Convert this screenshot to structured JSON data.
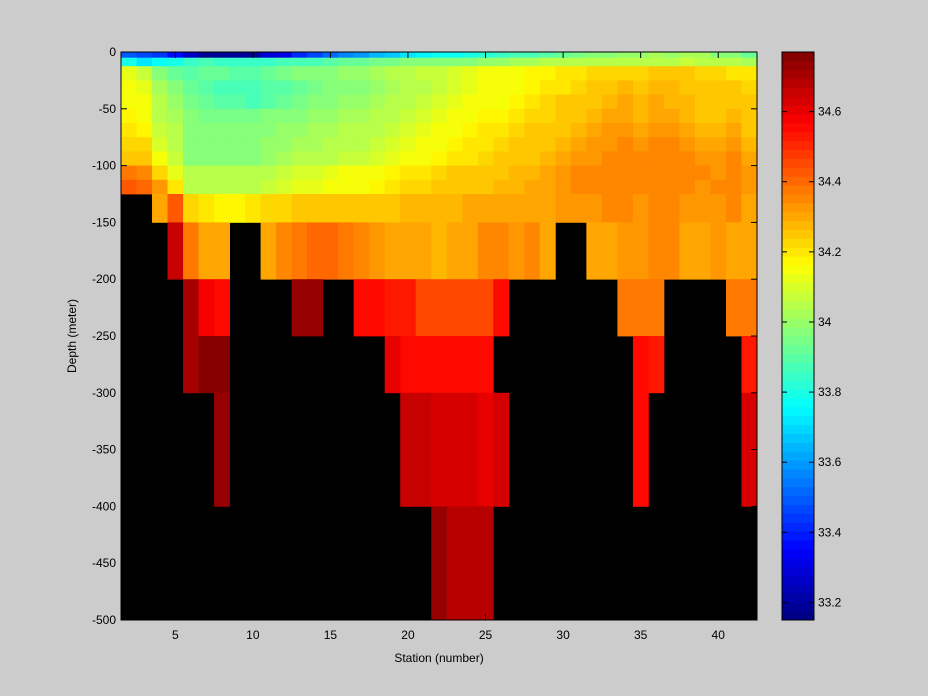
{
  "chart_data": {
    "type": "heatmap",
    "title": "",
    "xlabel": "Station (number)",
    "ylabel": "Depth (meter)",
    "xlim": [
      1.5,
      42.5
    ],
    "ylim": [
      -500,
      0
    ],
    "xticks": [
      5,
      10,
      15,
      20,
      25,
      30,
      35,
      40
    ],
    "yticks": [
      0,
      -50,
      -100,
      -150,
      -200,
      -250,
      -300,
      -350,
      -400,
      -450,
      -500
    ],
    "colorbar": {
      "colormap": "jet",
      "clim": [
        33.15,
        34.77
      ],
      "ticks": [
        33.2,
        33.4,
        33.6,
        33.8,
        34,
        34.2,
        34.4,
        34.6
      ],
      "tick_labels": [
        "33.2",
        "33.4",
        "33.6",
        "33.8",
        "34",
        "34.2",
        "34.4",
        "34.6"
      ],
      "levels": 64
    },
    "background_color": "#000000",
    "figure_color": "#cccccc",
    "stations": [
      2,
      3,
      4,
      5,
      6,
      7,
      8,
      9,
      10,
      11,
      12,
      13,
      14,
      15,
      16,
      17,
      18,
      19,
      20,
      21,
      22,
      23,
      24,
      25,
      26,
      27,
      28,
      29,
      30,
      31,
      32,
      33,
      34,
      35,
      36,
      37,
      38,
      39,
      40,
      41,
      42
    ],
    "depth_bins": [
      [
        -5,
        0
      ],
      [
        -12.5,
        -5
      ],
      [
        -25,
        -12.5
      ],
      [
        -37.5,
        -25
      ],
      [
        -50,
        -37.5
      ],
      [
        -62.5,
        -50
      ],
      [
        -75,
        -62.5
      ],
      [
        -87.5,
        -75
      ],
      [
        -100,
        -87.5
      ],
      [
        -112.5,
        -100
      ],
      [
        -125,
        -112.5
      ],
      [
        -150,
        -125
      ],
      [
        -200,
        -150
      ],
      [
        -250,
        -200
      ],
      [
        -300,
        -250
      ],
      [
        -400,
        -300
      ],
      [
        -500,
        -400
      ]
    ],
    "salinity_rows": [
      [
        33.48,
        33.46,
        33.44,
        33.36,
        33.26,
        33.2,
        33.18,
        33.18,
        33.18,
        33.28,
        33.32,
        33.42,
        33.46,
        33.52,
        33.56,
        33.6,
        33.64,
        33.68,
        33.72,
        33.74,
        33.76,
        33.78,
        33.8,
        33.82,
        33.84,
        33.86,
        33.88,
        33.9,
        33.92,
        33.94,
        33.96,
        33.98,
        34.0,
        34.0,
        34.02,
        34.0,
        34.02,
        34.02,
        33.98,
        33.96,
        33.92
      ],
      [
        33.8,
        33.72,
        33.76,
        33.8,
        33.84,
        33.86,
        33.84,
        33.84,
        33.84,
        33.84,
        33.86,
        33.86,
        33.88,
        33.9,
        33.92,
        33.92,
        33.94,
        33.94,
        33.96,
        33.96,
        33.98,
        33.98,
        33.98,
        34.0,
        34.0,
        34.02,
        34.02,
        34.04,
        34.04,
        34.04,
        34.06,
        34.06,
        34.06,
        34.04,
        34.06,
        34.06,
        34.08,
        34.06,
        34.06,
        34.04,
        34.02
      ],
      [
        34.12,
        34.08,
        33.96,
        33.92,
        33.9,
        33.92,
        33.92,
        33.9,
        33.9,
        33.92,
        33.94,
        33.96,
        33.96,
        33.98,
        34.0,
        34.0,
        34.02,
        34.04,
        34.06,
        34.08,
        34.08,
        34.1,
        34.12,
        34.14,
        34.16,
        34.16,
        34.18,
        34.18,
        34.2,
        34.2,
        34.22,
        34.22,
        34.22,
        34.22,
        34.24,
        34.24,
        34.24,
        34.22,
        34.22,
        34.2,
        34.2
      ],
      [
        34.14,
        34.12,
        34.02,
        33.96,
        33.92,
        33.9,
        33.88,
        33.88,
        33.88,
        33.9,
        33.9,
        33.92,
        33.94,
        33.96,
        33.98,
        33.98,
        34.0,
        34.02,
        34.04,
        34.06,
        34.08,
        34.1,
        34.12,
        34.14,
        34.16,
        34.16,
        34.18,
        34.2,
        34.2,
        34.22,
        34.24,
        34.26,
        34.28,
        34.26,
        34.28,
        34.28,
        34.26,
        34.24,
        34.24,
        34.24,
        34.22
      ],
      [
        34.16,
        34.14,
        34.04,
        34.0,
        33.94,
        33.92,
        33.9,
        33.9,
        33.88,
        33.9,
        33.92,
        33.94,
        33.96,
        33.98,
        34.0,
        34.0,
        34.02,
        34.04,
        34.06,
        34.08,
        34.1,
        34.12,
        34.14,
        34.16,
        34.16,
        34.18,
        34.2,
        34.22,
        34.24,
        34.24,
        34.26,
        34.28,
        34.3,
        34.28,
        34.3,
        34.28,
        34.28,
        34.26,
        34.26,
        34.26,
        34.24
      ],
      [
        34.18,
        34.16,
        34.06,
        34.02,
        33.98,
        33.94,
        33.94,
        33.94,
        33.94,
        33.96,
        33.96,
        33.98,
        34.0,
        34.0,
        34.02,
        34.02,
        34.04,
        34.06,
        34.08,
        34.1,
        34.12,
        34.14,
        34.16,
        34.18,
        34.18,
        34.2,
        34.22,
        34.22,
        34.24,
        34.26,
        34.28,
        34.3,
        34.3,
        34.28,
        34.3,
        34.3,
        34.28,
        34.26,
        34.26,
        34.28,
        34.24
      ],
      [
        34.2,
        34.18,
        34.08,
        34.04,
        33.98,
        33.96,
        33.96,
        33.96,
        33.96,
        33.98,
        34.0,
        34.0,
        34.02,
        34.02,
        34.04,
        34.04,
        34.06,
        34.08,
        34.1,
        34.12,
        34.14,
        34.16,
        34.18,
        34.2,
        34.2,
        34.22,
        34.24,
        34.24,
        34.26,
        34.28,
        34.3,
        34.32,
        34.32,
        34.3,
        34.32,
        34.32,
        34.3,
        34.28,
        34.28,
        34.3,
        34.26
      ],
      [
        34.22,
        34.22,
        34.1,
        34.06,
        33.98,
        33.96,
        33.96,
        33.96,
        33.98,
        34.0,
        34.0,
        34.02,
        34.02,
        34.04,
        34.06,
        34.06,
        34.08,
        34.1,
        34.12,
        34.14,
        34.16,
        34.18,
        34.2,
        34.2,
        34.22,
        34.24,
        34.24,
        34.26,
        34.28,
        34.3,
        34.32,
        34.32,
        34.34,
        34.32,
        34.34,
        34.34,
        34.32,
        34.3,
        34.3,
        34.32,
        34.28
      ],
      [
        34.26,
        34.26,
        34.14,
        34.08,
        33.98,
        33.96,
        33.96,
        33.96,
        33.98,
        34.0,
        34.02,
        34.04,
        34.04,
        34.06,
        34.08,
        34.08,
        34.1,
        34.12,
        34.14,
        34.16,
        34.18,
        34.2,
        34.2,
        34.22,
        34.24,
        34.26,
        34.26,
        34.28,
        34.3,
        34.32,
        34.32,
        34.34,
        34.36,
        34.34,
        34.36,
        34.36,
        34.34,
        34.32,
        34.32,
        34.34,
        34.3
      ],
      [
        34.38,
        34.34,
        34.22,
        34.12,
        34.04,
        34.04,
        34.04,
        34.04,
        34.04,
        34.06,
        34.08,
        34.1,
        34.1,
        34.12,
        34.14,
        34.14,
        34.16,
        34.18,
        34.2,
        34.2,
        34.22,
        34.24,
        34.24,
        34.26,
        34.26,
        34.28,
        34.28,
        34.3,
        34.32,
        34.34,
        34.34,
        34.36,
        34.36,
        34.34,
        34.36,
        34.36,
        34.34,
        34.34,
        34.32,
        34.36,
        34.32
      ],
      [
        34.42,
        34.4,
        34.32,
        34.2,
        34.06,
        34.06,
        34.06,
        34.06,
        34.06,
        34.08,
        34.1,
        34.12,
        34.12,
        34.14,
        34.16,
        34.16,
        34.18,
        34.2,
        34.22,
        34.22,
        34.24,
        34.24,
        34.26,
        34.26,
        34.28,
        34.28,
        34.3,
        34.3,
        34.32,
        34.34,
        34.34,
        34.36,
        34.36,
        34.36,
        34.36,
        34.36,
        34.34,
        34.32,
        34.34,
        34.36,
        34.32
      ],
      [
        null,
        null,
        34.3,
        34.44,
        34.22,
        34.2,
        34.18,
        34.18,
        34.2,
        34.22,
        34.22,
        34.24,
        34.24,
        34.24,
        34.26,
        34.26,
        34.26,
        34.26,
        34.28,
        34.28,
        34.28,
        34.28,
        34.3,
        34.3,
        34.3,
        34.3,
        34.3,
        34.3,
        34.32,
        34.32,
        34.32,
        34.34,
        34.34,
        34.32,
        34.34,
        34.34,
        34.32,
        34.32,
        34.32,
        34.34,
        34.3
      ],
      [
        null,
        null,
        null,
        34.66,
        34.38,
        34.3,
        34.3,
        null,
        null,
        34.3,
        34.34,
        34.38,
        34.4,
        34.4,
        34.38,
        34.36,
        34.32,
        34.3,
        34.3,
        34.3,
        34.28,
        34.3,
        34.3,
        34.34,
        34.36,
        34.32,
        34.34,
        34.3,
        null,
        null,
        34.3,
        34.3,
        34.32,
        34.32,
        34.36,
        34.36,
        34.3,
        34.3,
        34.32,
        34.3,
        34.3
      ],
      [
        null,
        null,
        null,
        null,
        34.7,
        34.58,
        34.56,
        null,
        null,
        null,
        null,
        34.74,
        34.74,
        null,
        null,
        34.56,
        34.56,
        34.52,
        34.52,
        34.46,
        34.46,
        34.46,
        34.46,
        34.46,
        34.56,
        null,
        null,
        null,
        null,
        null,
        null,
        null,
        34.38,
        34.38,
        34.38,
        null,
        null,
        null,
        null,
        34.38,
        34.38
      ],
      [
        null,
        null,
        null,
        null,
        34.7,
        34.76,
        34.76,
        null,
        null,
        null,
        null,
        null,
        null,
        null,
        null,
        null,
        null,
        34.6,
        34.56,
        34.56,
        34.56,
        34.56,
        34.56,
        34.56,
        null,
        null,
        null,
        null,
        null,
        null,
        null,
        null,
        null,
        34.56,
        34.52,
        null,
        null,
        null,
        null,
        null,
        34.52
      ],
      [
        null,
        null,
        null,
        null,
        null,
        null,
        34.74,
        null,
        null,
        null,
        null,
        null,
        null,
        null,
        null,
        null,
        null,
        null,
        34.66,
        34.66,
        34.62,
        34.62,
        34.62,
        34.6,
        34.64,
        null,
        null,
        null,
        null,
        null,
        null,
        null,
        null,
        34.56,
        null,
        null,
        null,
        null,
        null,
        null,
        34.64
      ],
      [
        null,
        null,
        null,
        null,
        null,
        null,
        null,
        null,
        null,
        null,
        null,
        null,
        null,
        null,
        null,
        null,
        null,
        null,
        null,
        null,
        34.72,
        34.68,
        34.68,
        34.68,
        null,
        null,
        null,
        null,
        null,
        null,
        null,
        null,
        null,
        null,
        null,
        null,
        null,
        null,
        null,
        null,
        null
      ]
    ]
  }
}
